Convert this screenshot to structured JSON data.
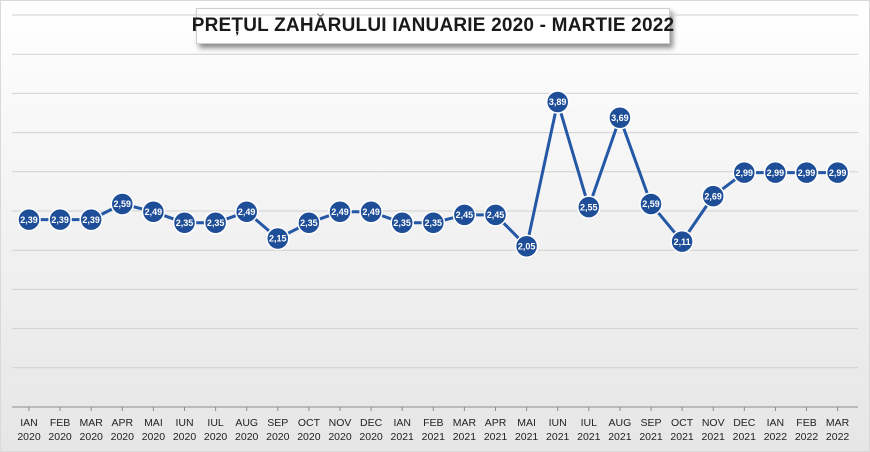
{
  "chart_data": {
    "type": "line",
    "title": "PREȚUL ZAHĂRULUI IANUARIE 2020 - MARTIE 2022",
    "xlabel": "",
    "ylabel": "",
    "ylim": [
      0,
      5
    ],
    "grid": true,
    "categories": [
      {
        "month": "IAN",
        "year": "2020"
      },
      {
        "month": "FEB",
        "year": "2020"
      },
      {
        "month": "MAR",
        "year": "2020"
      },
      {
        "month": "APR",
        "year": "2020"
      },
      {
        "month": "MAI",
        "year": "2020"
      },
      {
        "month": "IUN",
        "year": "2020"
      },
      {
        "month": "IUL",
        "year": "2020"
      },
      {
        "month": "AUG",
        "year": "2020"
      },
      {
        "month": "SEP",
        "year": "2020"
      },
      {
        "month": "OCT",
        "year": "2020"
      },
      {
        "month": "NOV",
        "year": "2020"
      },
      {
        "month": "DEC",
        "year": "2020"
      },
      {
        "month": "IAN",
        "year": "2021"
      },
      {
        "month": "FEB",
        "year": "2021"
      },
      {
        "month": "MAR",
        "year": "2021"
      },
      {
        "month": "APR",
        "year": "2021"
      },
      {
        "month": "MAI",
        "year": "2021"
      },
      {
        "month": "IUN",
        "year": "2021"
      },
      {
        "month": "IUL",
        "year": "2021"
      },
      {
        "month": "AUG",
        "year": "2021"
      },
      {
        "month": "SEP",
        "year": "2021"
      },
      {
        "month": "OCT",
        "year": "2021"
      },
      {
        "month": "NOV",
        "year": "2021"
      },
      {
        "month": "DEC",
        "year": "2021"
      },
      {
        "month": "IAN",
        "year": "2022"
      },
      {
        "month": "FEB",
        "year": "2022"
      },
      {
        "month": "MAR",
        "year": "2022"
      }
    ],
    "series": [
      {
        "values": [
          2.39,
          2.39,
          2.39,
          2.59,
          2.49,
          2.35,
          2.35,
          2.49,
          2.15,
          2.35,
          2.49,
          2.49,
          2.35,
          2.35,
          2.45,
          2.45,
          2.05,
          3.89,
          2.55,
          3.69,
          2.59,
          2.11,
          2.69,
          2.99,
          2.99,
          2.99,
          2.99
        ],
        "labels": [
          "2,39",
          "2,39",
          "2,39",
          "2,59",
          "2,49",
          "2,35",
          "2,35",
          "2,49",
          "2,15",
          "2,35",
          "2,49",
          "2,49",
          "2,35",
          "2,35",
          "2,45",
          "2,45",
          "2,05",
          "3,89",
          "2,55",
          "3,69",
          "2,59",
          "2,11",
          "2,69",
          "2,99",
          "2,99",
          "2,99",
          "2,99"
        ]
      }
    ],
    "colors": {
      "line": "#2458a6",
      "marker": "#1f4e98",
      "marker_stroke": "#ffffff",
      "grid": "#d0d0d0",
      "axis": "#8c8c8c"
    }
  }
}
